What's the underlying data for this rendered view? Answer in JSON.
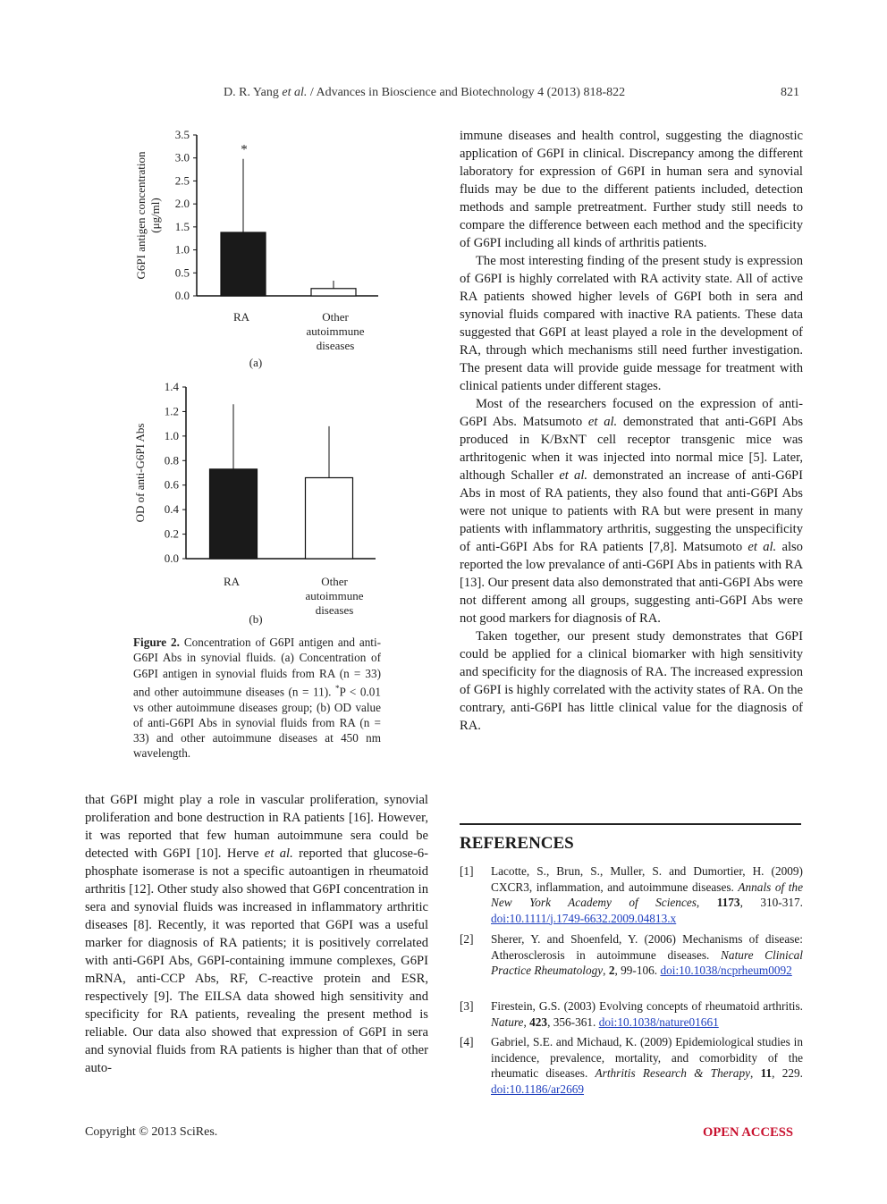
{
  "header": {
    "authors": "D. R. Yang",
    "etal": "et al.",
    "journal": "/ Advances in Bioscience and Biotechnology 4 (2013) 818-822",
    "page_number": "821"
  },
  "chart_data": [
    {
      "type": "bar",
      "panel_label": "(a)",
      "ylabel": "G6PI antigen concentration (μg/ml)",
      "ylabel_line1": "G6PI antigen concentration",
      "ylabel_line2": "(μg/ml)",
      "ylim": [
        0,
        3.5
      ],
      "yticks": [
        "0.0",
        "0.5",
        "1.0",
        "1.5",
        "2.0",
        "2.5",
        "3.0",
        "3.5"
      ],
      "categories": [
        "RA",
        "Other autoimmune diseases"
      ],
      "category_lines": [
        [
          "RA"
        ],
        [
          "Other",
          "autoimmune",
          "diseases"
        ]
      ],
      "values": [
        1.38,
        0.16
      ],
      "error": [
        1.6,
        0.17
      ],
      "bar_colors": [
        "#1a1a1a",
        "#ffffff"
      ],
      "annotation": "*"
    },
    {
      "type": "bar",
      "panel_label": "(b)",
      "ylabel": "OD of anti-G6PI Abs",
      "ylim": [
        0,
        1.4
      ],
      "yticks": [
        "0.0",
        "0.2",
        "0.4",
        "0.6",
        "0.8",
        "1.0",
        "1.2",
        "1.4"
      ],
      "categories": [
        "RA",
        "Other autoimmune diseases"
      ],
      "category_lines": [
        [
          "RA"
        ],
        [
          "Other",
          "autoimmune",
          "diseases"
        ]
      ],
      "values": [
        0.73,
        0.66
      ],
      "error": [
        0.53,
        0.42
      ],
      "bar_colors": [
        "#1a1a1a",
        "#ffffff"
      ]
    }
  ],
  "caption": {
    "label": "Figure 2.",
    "text_before_sup": " Concentration of G6PI antigen and anti-G6PI Abs in synovial fluids. (a) Concentration of G6PI antigen in synovial fluids from RA (n = 33) and other autoimmune diseases (n = 11). ",
    "sup": "*",
    "text_after_sup": "P < 0.01 vs other autoimmune diseases group; (b) OD value of anti-G6PI Abs in synovial fluids from RA (n = 33) and other autoimmune diseases at 450 nm wavelength."
  },
  "left_column": {
    "p1_a": "that G6PI might play a role in vascular proliferation, synovial proliferation and bone destruction in RA patients [16]. However, it was reported that few human autoimmune sera could be detected with G6PI [10]. Herve ",
    "p1_etal": "et al.",
    "p1_b": " reported that glucose-6-phosphate isomerase is not a specific autoantigen in rheumatoid arthritis [12]. Other study also showed that G6PI concentration in sera and synovial fluids was increased in inflammatory arthritic diseases [8]. Recently, it was reported that G6PI was a useful marker for diagnosis of RA patients; it is positively correlated with anti-G6PI Abs, G6PI-containing immune complexes, G6PI mRNA, anti-CCP Abs, RF, C-reactive protein and ESR, respectively [9]. The EILSA data showed high sensitivity and specificity for RA patients, revealing the present method is reliable. Our data also showed that expression of G6PI in sera and synovial fluids from RA patients is higher than that of other auto-"
  },
  "right_column": {
    "p1": "immune diseases and health control, suggesting the diagnostic application of G6PI in clinical. Discrepancy among the different laboratory for expression of G6PI in human sera and synovial fluids may be due to the different patients included, detection methods and sample pretreatment. Further study still needs to compare the difference between each method and the specificity of G6PI including all kinds of arthritis patients.",
    "p2": "The most interesting finding of the present study is expression of G6PI is highly correlated with RA activity state. All of active RA patients showed higher levels of G6PI both in sera and synovial fluids compared with inactive RA patients. These data suggested that G6PI at least played a role in the development of RA, through which mechanisms still need further investigation. The present data will provide guide message for treatment with clinical patients under different stages.",
    "p3_a": "Most of the researchers focused on the expression of anti-G6PI Abs. Matsumoto ",
    "p3_etal1": "et al.",
    "p3_b": " demonstrated that anti-G6PI Abs produced in K/BxNT cell receptor transgenic mice was arthritogenic when it was injected into normal mice [5]. Later, although Schaller ",
    "p3_etal2": "et al.",
    "p3_c": " demonstrated an increase of anti-G6PI Abs in most of RA patients, they also found that anti-G6PI Abs were not unique to patients with RA but were present in many patients with inflammatory arthritis, suggesting the unspecificity of anti-G6PI Abs for RA patients [7,8]. Matsumoto ",
    "p3_etal3": "et al.",
    "p3_d": " also reported the low prevalance of anti-G6PI Abs in patients with RA [13]. Our present data also demonstrated that anti-G6PI Abs were not different among all groups, suggesting anti-G6PI Abs were not good markers for diagnosis of RA.",
    "p4": "Taken together, our present study demonstrates that G6PI could be applied for a clinical biomarker with high sensitivity and specificity for the diagnosis of RA. The increased expression of G6PI is highly correlated with the activity states of RA. On the contrary, anti-G6PI has little clinical value for the diagnosis of RA."
  },
  "references": {
    "heading": "REFERENCES",
    "items": [
      {
        "num": "[1]",
        "authors": "Lacotte, S., Brun, S., Muller, S. and Dumortier, H. (2009) CXCR3, inflammation, and autoimmune diseases. ",
        "journal": "Annals of the New York Academy of Sciences",
        "sep": ", ",
        "volume": "1173",
        "pages": ", 310-317. ",
        "doi": "doi:10.1111/j.1749-6632.2009.04813.x"
      },
      {
        "num": "[2]",
        "authors": "Sherer, Y. and Shoenfeld, Y. (2006) Mechanisms of disease: Atherosclerosis in autoimmune diseases. ",
        "journal": "Nature Clinical Practice Rheumatology",
        "sep": ", ",
        "volume": "2",
        "pages": ", 99-106. ",
        "doi": "doi:10.1038/ncprheum0092"
      },
      {
        "num": "[3]",
        "authors": "Firestein, G.S. (2003) Evolving concepts of rheumatoid arthritis. ",
        "journal": "Nature",
        "sep": ", ",
        "volume": "423",
        "pages": ", 356-361. ",
        "doi": "doi:10.1038/nature01661"
      },
      {
        "num": "[4]",
        "authors": "Gabriel, S.E. and Michaud, K. (2009) Epidemiological studies in incidence, prevalence, mortality, and comorbidity of the rheumatic diseases. ",
        "journal": "Arthritis Research & Therapy",
        "sep": ", ",
        "volume": "11",
        "pages": ", 229. ",
        "doi": "doi:10.1186/ar2669"
      }
    ]
  },
  "footer": {
    "copyright": "Copyright © 2013 SciRes.",
    "open_access": "OPEN ACCESS"
  }
}
